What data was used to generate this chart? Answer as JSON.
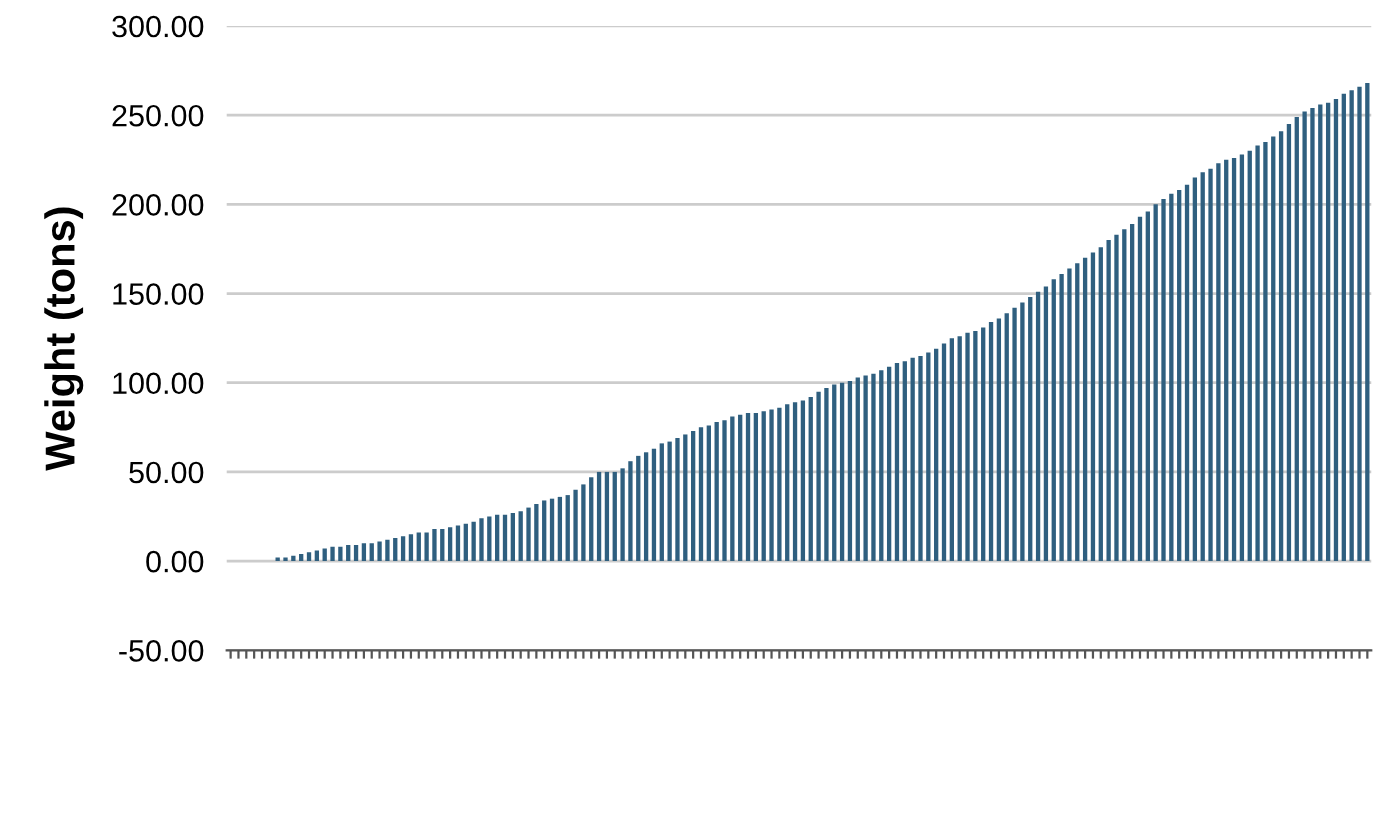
{
  "chart_data": {
    "type": "bar",
    "ylabel": "Weight (tons)",
    "categories": [
      null,
      null,
      null,
      null,
      null,
      null,
      null,
      null,
      null,
      null,
      null,
      null,
      null,
      null,
      null,
      null,
      null,
      null,
      null,
      null,
      null,
      null,
      null,
      null,
      null,
      null,
      null,
      null,
      null,
      null,
      null,
      null,
      null,
      null,
      null,
      null,
      null,
      null,
      null,
      null,
      null,
      null,
      null,
      null,
      null,
      null,
      null,
      null,
      null,
      null,
      null,
      null,
      null,
      null,
      null,
      null,
      null,
      null,
      null,
      null,
      null,
      null,
      null,
      null,
      null,
      null,
      null,
      null,
      null,
      null,
      null,
      null,
      null,
      null,
      null,
      null,
      null,
      null,
      null,
      null,
      null,
      null,
      null,
      null,
      null,
      null,
      null,
      null,
      null,
      null,
      null,
      null,
      null,
      null,
      null,
      null,
      null,
      null,
      null,
      null,
      null,
      null,
      null,
      null,
      null,
      null,
      null,
      null,
      null,
      null,
      null,
      null,
      null,
      null,
      null,
      null,
      null,
      null,
      null,
      null,
      null,
      null,
      null,
      null,
      null,
      null,
      null,
      null,
      null,
      null,
      null,
      null,
      null,
      null,
      null,
      null,
      null,
      null,
      null,
      null,
      null,
      null,
      null,
      null,
      null,
      null
    ],
    "values": [
      0,
      0,
      0,
      0,
      0,
      0,
      2,
      2,
      3,
      4,
      5,
      6,
      7,
      8,
      8,
      9,
      9,
      10,
      10,
      11,
      12,
      13,
      14,
      15,
      16,
      16,
      18,
      18,
      19,
      20,
      21,
      22,
      24,
      25,
      26,
      26,
      27,
      28,
      30,
      32,
      34,
      35,
      36,
      37,
      40,
      43,
      47,
      50,
      50,
      50,
      52,
      56,
      59,
      61,
      63,
      66,
      67,
      69,
      71,
      73,
      75,
      76,
      78,
      79,
      81,
      82,
      83,
      83,
      84,
      85,
      86,
      88,
      89,
      90,
      92,
      95,
      97,
      99,
      100,
      101,
      103,
      104,
      105,
      107,
      109,
      111,
      112,
      114,
      115,
      117,
      119,
      122,
      125,
      126,
      128,
      129,
      131,
      134,
      136,
      139,
      142,
      145,
      148,
      151,
      154,
      158,
      161,
      164,
      167,
      170,
      173,
      176,
      180,
      183,
      186,
      189,
      193,
      196,
      200,
      203,
      206,
      208,
      211,
      215,
      218,
      220,
      223,
      225,
      226,
      228,
      230,
      233,
      235,
      238,
      241,
      245,
      249,
      252,
      254,
      256,
      257,
      259,
      262,
      264,
      266,
      268
    ],
    "color": "#2f5f7f",
    "ylim": [
      -50,
      300
    ],
    "yticks": [
      {
        "value": -50,
        "label": "-50.00"
      },
      {
        "value": 0,
        "label": "0.00"
      },
      {
        "value": 50,
        "label": "50.00"
      },
      {
        "value": 100,
        "label": "100.00"
      },
      {
        "value": 150,
        "label": "150.00"
      },
      {
        "value": 200,
        "label": "200.00"
      },
      {
        "value": 250,
        "label": "250.00"
      },
      {
        "value": 300,
        "label": "300.00"
      }
    ],
    "grid": "y"
  }
}
